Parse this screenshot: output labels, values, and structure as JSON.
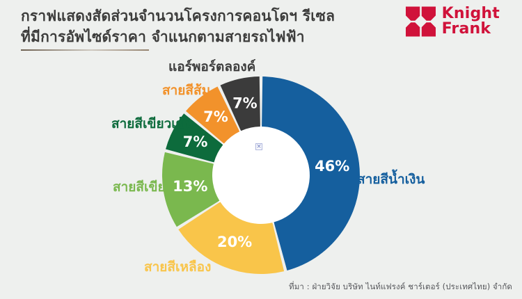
{
  "header": {
    "title_line1": "กราฟแสดงสัดส่วนจำนวนโครงการคอนโดฯ รีเซล",
    "title_line2": "ที่มีการอัพไซด์ราคา จำแนกตามสายรถไฟฟ้า"
  },
  "logo": {
    "name_line1": "Knight",
    "name_line2": "Frank",
    "color": "#d0123a"
  },
  "source": "ที่มา : ฝ่ายวิจัย บริษัท ไนท์แฟรงค์ ชาร์เตอร์ (ประเทศไทย) จำกัด",
  "colors": {
    "background": "#eef0ee",
    "title": "#3c3c3b",
    "source": "#55565a",
    "hole": "#ffffff",
    "value_text": "#ffffff"
  },
  "chart_data": {
    "type": "pie",
    "subtype": "donut",
    "title": "กราฟแสดงสัดส่วนจำนวนโครงการคอนโดฯ รีเซล ที่มีการอัพไซด์ราคา จำแนกตามสายรถไฟฟ้า",
    "unit": "%",
    "start_angle_deg": 0,
    "direction": "clockwise",
    "legend_position": "around",
    "segments": [
      {
        "label": "สายสีน้ำเงิน",
        "value": 46,
        "value_label": "46%",
        "color": "#155f9e"
      },
      {
        "label": "สายสีเหลือง",
        "value": 20,
        "value_label": "20%",
        "color": "#f9c54a"
      },
      {
        "label": "สายสีเขียว",
        "value": 13,
        "value_label": "13%",
        "color": "#7ab84e"
      },
      {
        "label": "สายสีเขียวเข้ม",
        "value": 7,
        "value_label": "7%",
        "color": "#0d6b3c"
      },
      {
        "label": "สายสีส้ม",
        "value": 7,
        "value_label": "7%",
        "color": "#f2922b"
      },
      {
        "label": "แอร์พอร์ตลองค์",
        "value": 7,
        "value_label": "7%",
        "color": "#3b3b3b",
        "label_color": "#3d3d3d"
      }
    ]
  }
}
